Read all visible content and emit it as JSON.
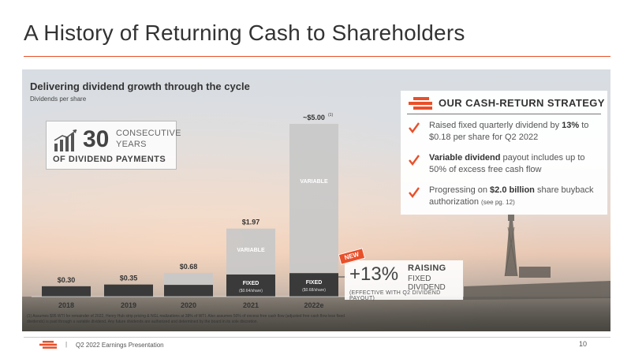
{
  "header": {
    "title": "A History of Returning Cash to Shareholders"
  },
  "chart_data": {
    "type": "bar",
    "title": "Delivering dividend growth through the cycle",
    "subtitle": "Dividends per share",
    "categories": [
      "2018",
      "2019",
      "2020",
      "2021",
      "2022e"
    ],
    "series": [
      {
        "name": "FIXED",
        "values": [
          0.3,
          0.35,
          0.34,
          0.64,
          0.68
        ]
      },
      {
        "name": "VARIABLE",
        "values": [
          0,
          0,
          0.34,
          1.33,
          4.32
        ]
      }
    ],
    "totals": [
      "$0.30",
      "$0.35",
      "$0.68",
      "$1.97",
      "~$5.00"
    ],
    "total_values": [
      0.3,
      0.35,
      0.68,
      1.97,
      5.0
    ],
    "total_footnote": "(1)",
    "fixed_labels": [
      "",
      "",
      "",
      "FIXED",
      "FIXED"
    ],
    "fixed_sublabels": [
      "",
      "",
      "",
      "($0.64/share)",
      "($0.68/share)"
    ],
    "variable_labels": [
      "",
      "",
      "",
      "VARIABLE",
      "VARIABLE"
    ],
    "ylim": [
      0,
      5.0
    ],
    "colors": {
      "fixed": "#3a3a3a",
      "variable": "#c8c8c8"
    }
  },
  "years_box": {
    "number": "30",
    "line1": "CONSECUTIVE",
    "line2": "YEARS",
    "subtitle": "OF DIVIDEND PAYMENTS",
    "icon": "bar-chart-growth-icon"
  },
  "strategy": {
    "title": "OUR CASH-RETURN STRATEGY",
    "icon": "logo-stripes-icon",
    "items": [
      {
        "pre": "Raised fixed quarterly dividend by ",
        "bold": "13%",
        "post": " to $0.18 per share for Q2 2022",
        "small": ""
      },
      {
        "pre": "",
        "bold": "Variable dividend",
        "post": " payout includes up to 50% of excess free cash flow",
        "small": ""
      },
      {
        "pre": "Progressing on ",
        "bold": "$2.0 billion",
        "post": " share buyback authorization ",
        "small": "(see pg. 12)"
      }
    ],
    "accent": "#e8502a"
  },
  "raising": {
    "badge": "NEW",
    "percent": "+13%",
    "line1": "RAISING",
    "line2": "FIXED DIVIDEND",
    "line3": "(EFFECTIVE WITH Q2 DIVIDEND PAYOUT)"
  },
  "footnote": "(1) Assumes $95 WTI for remainder of 2022, Henry Hub strip pricing & NGL realizations at 38% of WTI. Also assumes 50% of excess free cash flow (adjusted free cash flow less fixed dividends) is paid through a variable dividend. Any future dividends are authorized and determined by the board in its sole discretion.",
  "footer": {
    "separator": "|",
    "text": "Q2 2022 Earnings Presentation",
    "page": "10"
  }
}
